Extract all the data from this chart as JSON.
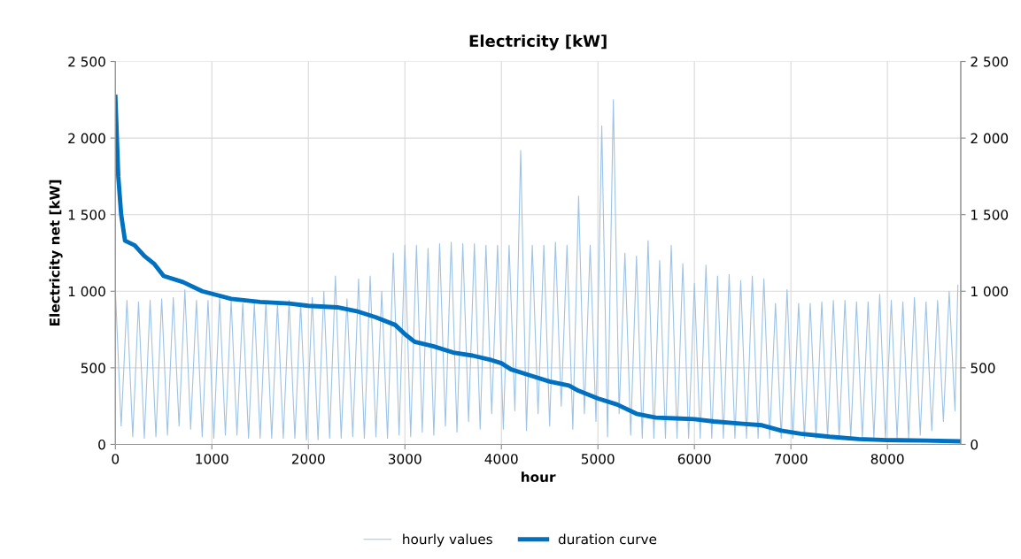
{
  "chart_data": {
    "type": "line",
    "title": "Electricity [kW]",
    "xlabel": "hour",
    "ylabel": "Electricity net [kW]",
    "xlim": [
      0,
      8760
    ],
    "xticks": [
      0,
      1000,
      2000,
      3000,
      4000,
      5000,
      6000,
      7000,
      8000
    ],
    "ylim": [
      0,
      2500
    ],
    "yticks": [
      {
        "value": 0,
        "label": "0"
      },
      {
        "value": 500,
        "label": "500"
      },
      {
        "value": 1000,
        "label": "1 000"
      },
      {
        "value": 1500,
        "label": "1 500"
      },
      {
        "value": 2000,
        "label": "2 000"
      },
      {
        "value": 2500,
        "label": "2 500"
      }
    ],
    "y2lim": [
      0,
      2500
    ],
    "y2ticks": [
      {
        "value": 0,
        "label": "0"
      },
      {
        "value": 500,
        "label": "500"
      },
      {
        "value": 1000,
        "label": "1 000"
      },
      {
        "value": 1500,
        "label": "1 500"
      },
      {
        "value": 2000,
        "label": "2 000"
      },
      {
        "value": 2500,
        "label": "2 500"
      }
    ],
    "grid": true,
    "legend": "bottom",
    "marker": "none",
    "series": [
      {
        "name": "hourly values",
        "color": "#9dc3e6",
        "x": [
          0,
          60,
          120,
          180,
          240,
          300,
          360,
          420,
          480,
          540,
          600,
          660,
          720,
          780,
          840,
          900,
          960,
          1020,
          1080,
          1140,
          1200,
          1260,
          1320,
          1380,
          1440,
          1500,
          1560,
          1620,
          1680,
          1740,
          1800,
          1860,
          1920,
          1980,
          2040,
          2100,
          2160,
          2220,
          2280,
          2340,
          2400,
          2460,
          2520,
          2580,
          2640,
          2700,
          2760,
          2820,
          2880,
          2940,
          3000,
          3060,
          3120,
          3180,
          3240,
          3300,
          3360,
          3420,
          3480,
          3540,
          3600,
          3660,
          3720,
          3780,
          3840,
          3900,
          3960,
          4020,
          4080,
          4140,
          4200,
          4260,
          4320,
          4380,
          4440,
          4500,
          4560,
          4620,
          4680,
          4740,
          4800,
          4860,
          4920,
          4980,
          5040,
          5100,
          5160,
          5220,
          5280,
          5340,
          5400,
          5460,
          5520,
          5580,
          5640,
          5700,
          5760,
          5820,
          5880,
          5940,
          6000,
          6060,
          6120,
          6180,
          6240,
          6300,
          6360,
          6420,
          6480,
          6540,
          6600,
          6660,
          6720,
          6780,
          6840,
          6900,
          6960,
          7020,
          7080,
          7140,
          7200,
          7260,
          7320,
          7380,
          7440,
          7500,
          7560,
          7620,
          7680,
          7740,
          7800,
          7860,
          7920,
          7980,
          8040,
          8100,
          8160,
          8220,
          8280,
          8340,
          8400,
          8460,
          8520,
          8580,
          8640,
          8700,
          8730
        ],
        "values": [
          1010,
          120,
          940,
          50,
          930,
          40,
          940,
          50,
          950,
          60,
          960,
          120,
          1010,
          100,
          940,
          50,
          940,
          40,
          960,
          60,
          940,
          60,
          920,
          40,
          920,
          40,
          930,
          40,
          920,
          40,
          940,
          40,
          920,
          30,
          960,
          30,
          1000,
          40,
          1100,
          40,
          950,
          50,
          1080,
          40,
          1100,
          50,
          1000,
          40,
          1250,
          60,
          1300,
          50,
          1300,
          80,
          1280,
          60,
          1310,
          120,
          1320,
          80,
          1310,
          150,
          1310,
          100,
          1300,
          200,
          1300,
          100,
          1300,
          220,
          1920,
          90,
          1300,
          200,
          1300,
          120,
          1320,
          250,
          1300,
          100,
          1620,
          200,
          1300,
          150,
          2080,
          50,
          2250,
          200,
          1250,
          60,
          1230,
          40,
          1330,
          40,
          1200,
          40,
          1300,
          40,
          1180,
          40,
          1050,
          40,
          1170,
          40,
          1100,
          40,
          1110,
          40,
          1070,
          40,
          1100,
          40,
          1080,
          40,
          920,
          40,
          1010,
          40,
          920,
          40,
          920,
          40,
          930,
          40,
          940,
          40,
          940,
          40,
          930,
          40,
          930,
          40,
          980,
          40,
          940,
          40,
          930,
          40,
          960,
          60,
          930,
          90,
          940,
          150,
          1000,
          220,
          1040
        ]
      },
      {
        "name": "duration curve",
        "color": "#0070c0",
        "x": [
          0,
          10,
          30,
          60,
          100,
          200,
          300,
          400,
          500,
          700,
          900,
          1200,
          1500,
          1800,
          2000,
          2300,
          2500,
          2700,
          2900,
          3000,
          3100,
          3300,
          3500,
          3700,
          3900,
          4000,
          4100,
          4300,
          4500,
          4700,
          4800,
          5000,
          5200,
          5400,
          5600,
          5800,
          6000,
          6200,
          6500,
          6700,
          6900,
          7100,
          7400,
          7700,
          8000,
          8400,
          8760
        ],
        "values": [
          2270,
          2100,
          1750,
          1500,
          1330,
          1300,
          1230,
          1180,
          1100,
          1060,
          1000,
          950,
          930,
          920,
          905,
          895,
          870,
          830,
          780,
          720,
          670,
          640,
          600,
          580,
          550,
          530,
          490,
          450,
          410,
          385,
          350,
          300,
          260,
          200,
          175,
          170,
          165,
          150,
          135,
          125,
          90,
          70,
          50,
          35,
          28,
          25,
          20
        ]
      }
    ]
  }
}
